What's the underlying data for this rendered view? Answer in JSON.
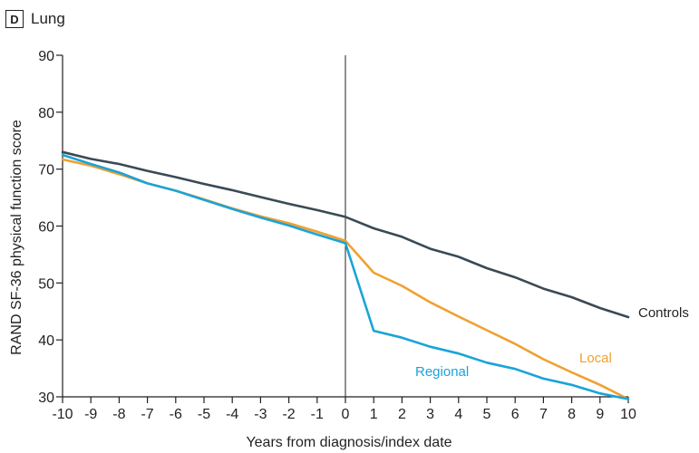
{
  "panel": {
    "letter": "D",
    "title": "Lung"
  },
  "chart_data": {
    "type": "line",
    "title": "Lung",
    "xlabel": "Years from diagnosis/index date",
    "ylabel": "RAND SF-36 physical function score",
    "xlim": [
      -10,
      10
    ],
    "ylim": [
      30,
      90
    ],
    "x_ticks": [
      -10,
      -9,
      -8,
      -7,
      -6,
      -5,
      -4,
      -3,
      -2,
      -1,
      0,
      1,
      2,
      3,
      4,
      5,
      6,
      7,
      8,
      9,
      10
    ],
    "y_ticks": [
      30,
      40,
      50,
      60,
      70,
      80,
      90
    ],
    "reference_line_x": 0,
    "grid": false,
    "legend": "inline labels",
    "series": [
      {
        "name": "Controls",
        "color": "#3a4a55",
        "x": [
          -10,
          -9,
          -8,
          -7,
          -6,
          -5,
          -4,
          -3,
          -2,
          -1,
          0,
          1,
          2,
          3,
          4,
          5,
          6,
          7,
          8,
          9,
          10
        ],
        "y": [
          73,
          71.8,
          70.9,
          69.7,
          68.6,
          67.4,
          66.3,
          65.1,
          63.9,
          62.8,
          61.6,
          59.6,
          58.1,
          56,
          54.6,
          52.6,
          51,
          49,
          47.5,
          45.6,
          44
        ]
      },
      {
        "name": "Local",
        "color": "#f0a030",
        "x": [
          -10,
          -9,
          -8,
          -7,
          -6,
          -5,
          -4,
          -3,
          -2,
          -1,
          0,
          1,
          2,
          3,
          4,
          5,
          6,
          7,
          8,
          9,
          10
        ],
        "y": [
          71.7,
          70.6,
          69.1,
          67.5,
          66.2,
          64.7,
          63.1,
          61.7,
          60.5,
          59,
          57.4,
          51.8,
          49.5,
          46.6,
          44.1,
          41.7,
          39.3,
          36.6,
          34.3,
          32.1,
          29.6
        ]
      },
      {
        "name": "Regional",
        "color": "#1ba3d8",
        "x": [
          -10,
          -9,
          -8,
          -7,
          -6,
          -5,
          -4,
          -3,
          -2,
          -1,
          0,
          1,
          2,
          3,
          4,
          5,
          6,
          7,
          8,
          9,
          10
        ],
        "y": [
          72.5,
          70.9,
          69.4,
          67.5,
          66.2,
          64.6,
          63,
          61.5,
          60.1,
          58.5,
          57,
          41.6,
          40.4,
          38.8,
          37.6,
          36,
          34.9,
          33.2,
          32.1,
          30.6,
          29.6
        ]
      }
    ]
  }
}
